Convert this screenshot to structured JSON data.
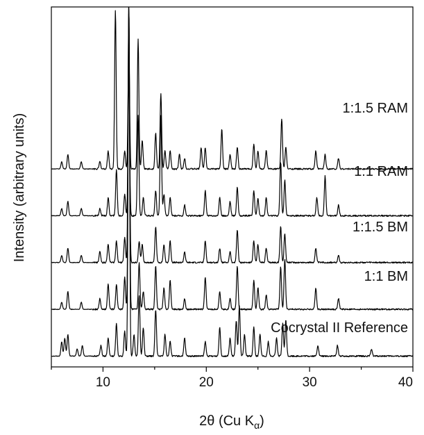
{
  "chart_data": {
    "type": "line",
    "title": "",
    "xlabel": "2θ (Cu K",
    "xlabel_sub": "α",
    "xlabel_close": ")",
    "ylabel": "Intensity (arbitrary units)",
    "xlim": [
      5,
      40
    ],
    "xticks": [
      10,
      20,
      30,
      40
    ],
    "y_ticks_labeled": false,
    "grid": false,
    "legend": "labels placed above each trace, right side",
    "series": [
      {
        "name": "Cocrystal II Reference",
        "baseline": 0.03,
        "peaks": [
          [
            6.0,
            0.04
          ],
          [
            6.3,
            0.05
          ],
          [
            6.6,
            0.06
          ],
          [
            7.5,
            0.02
          ],
          [
            8.0,
            0.03
          ],
          [
            9.8,
            0.03
          ],
          [
            10.5,
            0.05
          ],
          [
            11.3,
            0.09
          ],
          [
            12.1,
            0.07
          ],
          [
            12.5,
            0.96
          ],
          [
            13.0,
            0.06
          ],
          [
            13.5,
            0.17
          ],
          [
            13.9,
            0.08
          ],
          [
            15.1,
            0.13
          ],
          [
            16.0,
            0.06
          ],
          [
            16.5,
            0.04
          ],
          [
            17.9,
            0.05
          ],
          [
            19.9,
            0.04
          ],
          [
            21.3,
            0.08
          ],
          [
            22.3,
            0.05
          ],
          [
            22.9,
            0.1
          ],
          [
            23.2,
            0.14
          ],
          [
            23.7,
            0.06
          ],
          [
            24.6,
            0.08
          ],
          [
            25.2,
            0.06
          ],
          [
            26.0,
            0.04
          ],
          [
            26.8,
            0.05
          ],
          [
            27.4,
            0.09
          ],
          [
            27.7,
            0.1
          ],
          [
            30.8,
            0.03
          ],
          [
            32.7,
            0.03
          ],
          [
            36.0,
            0.02
          ]
        ]
      },
      {
        "name": "1:1 BM",
        "baseline": 0.16,
        "peaks": [
          [
            6.0,
            0.02
          ],
          [
            6.6,
            0.05
          ],
          [
            7.9,
            0.02
          ],
          [
            9.7,
            0.03
          ],
          [
            10.5,
            0.07
          ],
          [
            11.3,
            0.07
          ],
          [
            12.1,
            0.09
          ],
          [
            12.5,
            0.85
          ],
          [
            13.5,
            0.13
          ],
          [
            13.9,
            0.05
          ],
          [
            15.1,
            0.12
          ],
          [
            15.9,
            0.06
          ],
          [
            16.5,
            0.08
          ],
          [
            17.9,
            0.03
          ],
          [
            19.9,
            0.09
          ],
          [
            21.3,
            0.05
          ],
          [
            22.3,
            0.03
          ],
          [
            23.0,
            0.12
          ],
          [
            24.6,
            0.08
          ],
          [
            25.0,
            0.06
          ],
          [
            25.8,
            0.04
          ],
          [
            27.2,
            0.12
          ],
          [
            27.6,
            0.14
          ],
          [
            30.6,
            0.06
          ],
          [
            32.8,
            0.03
          ]
        ]
      },
      {
        "name": "1:1.5 BM",
        "baseline": 0.29,
        "peaks": [
          [
            6.0,
            0.02
          ],
          [
            6.6,
            0.04
          ],
          [
            7.9,
            0.02
          ],
          [
            9.7,
            0.03
          ],
          [
            10.5,
            0.05
          ],
          [
            11.3,
            0.06
          ],
          [
            12.1,
            0.07
          ],
          [
            12.5,
            0.72
          ],
          [
            13.5,
            0.06
          ],
          [
            13.8,
            0.05
          ],
          [
            15.1,
            0.1
          ],
          [
            15.9,
            0.05
          ],
          [
            16.5,
            0.06
          ],
          [
            17.9,
            0.03
          ],
          [
            19.9,
            0.06
          ],
          [
            21.3,
            0.04
          ],
          [
            22.3,
            0.03
          ],
          [
            23.0,
            0.09
          ],
          [
            24.6,
            0.06
          ],
          [
            25.0,
            0.05
          ],
          [
            25.8,
            0.04
          ],
          [
            27.2,
            0.1
          ],
          [
            27.6,
            0.08
          ],
          [
            30.6,
            0.04
          ],
          [
            32.8,
            0.02
          ]
        ]
      },
      {
        "name": "1:1 RAM",
        "baseline": 0.42,
        "peaks": [
          [
            6.0,
            0.02
          ],
          [
            6.6,
            0.04
          ],
          [
            7.9,
            0.02
          ],
          [
            9.7,
            0.02
          ],
          [
            10.5,
            0.05
          ],
          [
            11.3,
            0.13
          ],
          [
            12.1,
            0.06
          ],
          [
            12.5,
            0.4
          ],
          [
            13.4,
            0.28
          ],
          [
            13.9,
            0.05
          ],
          [
            15.1,
            0.07
          ],
          [
            15.6,
            0.28
          ],
          [
            15.9,
            0.06
          ],
          [
            16.5,
            0.05
          ],
          [
            17.9,
            0.03
          ],
          [
            19.9,
            0.07
          ],
          [
            21.3,
            0.05
          ],
          [
            22.3,
            0.04
          ],
          [
            23.0,
            0.08
          ],
          [
            24.6,
            0.07
          ],
          [
            25.0,
            0.05
          ],
          [
            25.8,
            0.05
          ],
          [
            27.2,
            0.15
          ],
          [
            27.6,
            0.1
          ],
          [
            30.7,
            0.05
          ],
          [
            31.5,
            0.11
          ],
          [
            32.8,
            0.03
          ]
        ]
      },
      {
        "name": "1:1.5 RAM",
        "baseline": 0.55,
        "peaks": [
          [
            6.0,
            0.02
          ],
          [
            6.6,
            0.04
          ],
          [
            7.9,
            0.02
          ],
          [
            9.7,
            0.02
          ],
          [
            10.5,
            0.05
          ],
          [
            11.2,
            0.44
          ],
          [
            12.1,
            0.05
          ],
          [
            12.5,
            0.34
          ],
          [
            13.4,
            0.36
          ],
          [
            13.8,
            0.08
          ],
          [
            15.1,
            0.1
          ],
          [
            15.6,
            0.21
          ],
          [
            16.0,
            0.05
          ],
          [
            16.5,
            0.05
          ],
          [
            17.4,
            0.04
          ],
          [
            17.9,
            0.03
          ],
          [
            19.5,
            0.06
          ],
          [
            19.9,
            0.06
          ],
          [
            21.5,
            0.11
          ],
          [
            22.3,
            0.04
          ],
          [
            23.0,
            0.06
          ],
          [
            24.6,
            0.07
          ],
          [
            25.0,
            0.05
          ],
          [
            25.8,
            0.05
          ],
          [
            27.3,
            0.14
          ],
          [
            27.7,
            0.06
          ],
          [
            30.6,
            0.05
          ],
          [
            31.5,
            0.04
          ],
          [
            32.8,
            0.03
          ]
        ]
      }
    ]
  }
}
